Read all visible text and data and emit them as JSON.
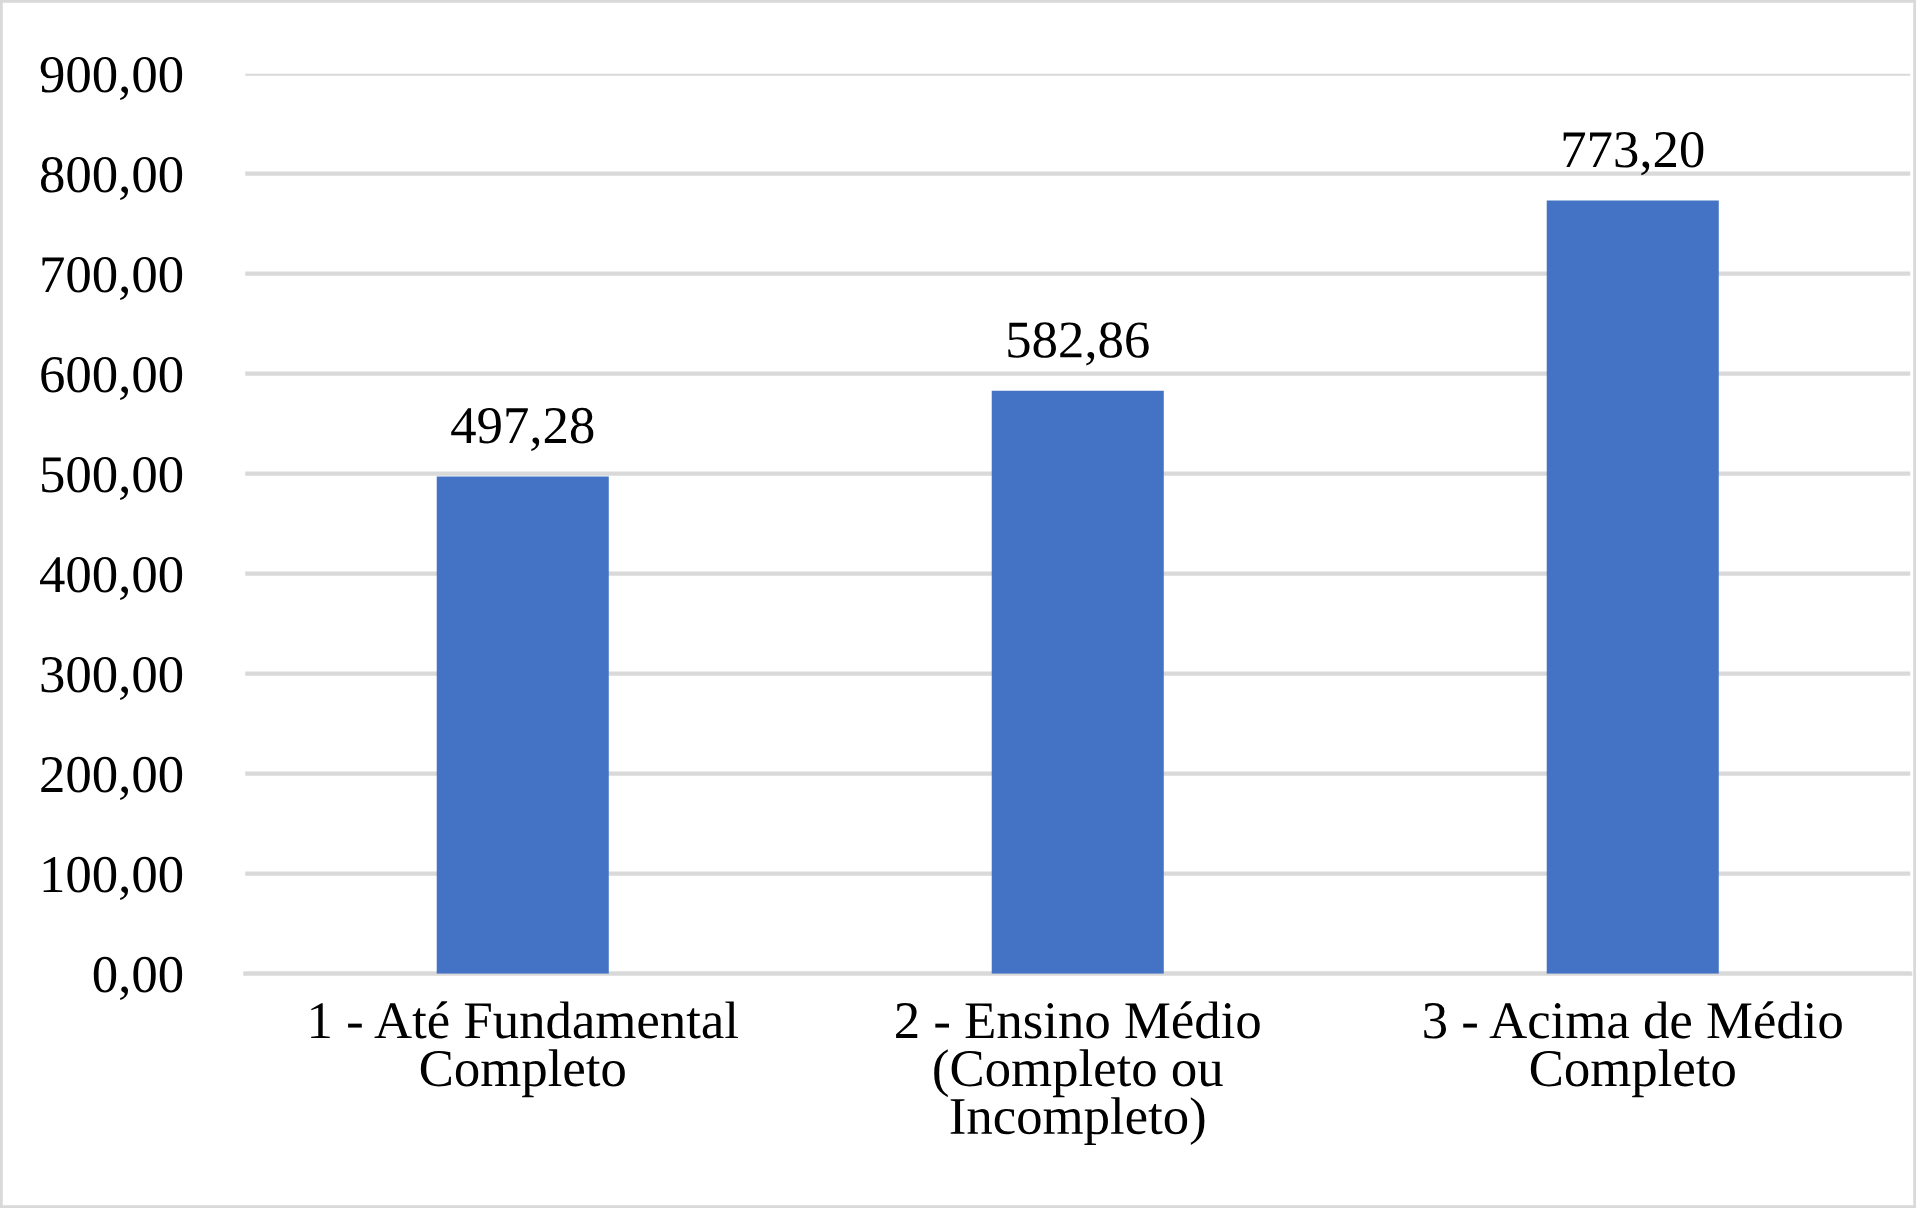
{
  "chart_data": {
    "type": "bar",
    "categories": [
      "1 - Até Fundamental Completo",
      "2 - Ensino Médio (Completo ou Incompleto)",
      "3 - Acima de Médio Completo"
    ],
    "values": [
      497.28,
      582.86,
      773.2
    ],
    "value_labels": [
      "497,28",
      "582,86",
      "773,20"
    ],
    "color": "#4472c4",
    "ylim": [
      0,
      900
    ],
    "yticks": [
      {
        "value": 0,
        "label": "0,00"
      },
      {
        "value": 100,
        "label": "100,00"
      },
      {
        "value": 200,
        "label": "200,00"
      },
      {
        "value": 300,
        "label": "300,00"
      },
      {
        "value": 400,
        "label": "400,00"
      },
      {
        "value": 500,
        "label": "500,00"
      },
      {
        "value": 600,
        "label": "600,00"
      },
      {
        "value": 700,
        "label": "700,00"
      },
      {
        "value": 800,
        "label": "800,00"
      },
      {
        "value": 900,
        "label": "900,00"
      }
    ],
    "grid": "y"
  }
}
